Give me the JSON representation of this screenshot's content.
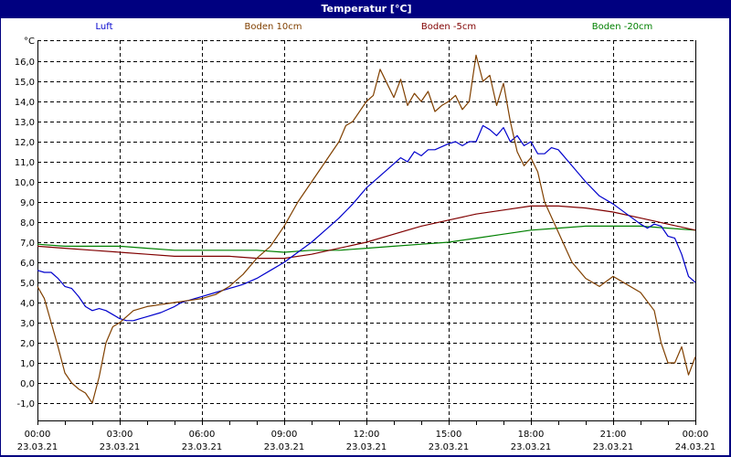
{
  "window": {
    "title": "Temperatur [°C]",
    "title_bg": "#000080"
  },
  "chart_data": {
    "type": "line",
    "title": "Temperatur [°C]",
    "ylabel": "°C",
    "xlabel": "",
    "ylim": [
      -1.9,
      17.0
    ],
    "xlim_hours": [
      0,
      24
    ],
    "grid": true,
    "legend_position": "top",
    "y_ticks": [
      "16,0",
      "15,0",
      "14,0",
      "13,0",
      "12,0",
      "11,0",
      "10,0",
      "9,0",
      "8,0",
      "7,0",
      "6,0",
      "5,0",
      "4,0",
      "3,0",
      "2,0",
      "1,0",
      "0,0",
      "-1,0"
    ],
    "y_tick_values": [
      16,
      15,
      14,
      13,
      12,
      11,
      10,
      9,
      8,
      7,
      6,
      5,
      4,
      3,
      2,
      1,
      0,
      -1
    ],
    "x_ticks": [
      {
        "h": 0,
        "time": "00:00",
        "date": "23.03.21"
      },
      {
        "h": 3,
        "time": "03:00",
        "date": "23.03.21"
      },
      {
        "h": 6,
        "time": "06:00",
        "date": "23.03.21"
      },
      {
        "h": 9,
        "time": "09:00",
        "date": "23.03.21"
      },
      {
        "h": 12,
        "time": "12:00",
        "date": "23.03.21"
      },
      {
        "h": 15,
        "time": "15:00",
        "date": "23.03.21"
      },
      {
        "h": 18,
        "time": "18:00",
        "date": "23.03.21"
      },
      {
        "h": 21,
        "time": "21:00",
        "date": "23.03.21"
      },
      {
        "h": 24,
        "time": "00:00",
        "date": "24.03.21"
      }
    ],
    "series": [
      {
        "name": "Luft",
        "color": "#0000cc",
        "x": [
          0,
          0.25,
          0.5,
          0.75,
          1.0,
          1.25,
          1.5,
          1.75,
          2.0,
          2.25,
          2.5,
          2.75,
          3.0,
          3.25,
          3.5,
          3.75,
          4.0,
          4.5,
          5.0,
          5.25,
          5.5,
          5.75,
          6.0,
          6.5,
          7.0,
          7.5,
          8.0,
          8.5,
          9.0,
          9.5,
          10.0,
          10.5,
          11.0,
          11.5,
          12.0,
          12.5,
          13.0,
          13.25,
          13.5,
          13.75,
          14.0,
          14.25,
          14.5,
          15.0,
          15.25,
          15.5,
          15.75,
          16.0,
          16.25,
          16.5,
          16.75,
          17.0,
          17.25,
          17.5,
          17.75,
          18.0,
          18.25,
          18.5,
          18.75,
          19.0,
          19.5,
          20.0,
          20.5,
          21.0,
          21.5,
          22.0,
          22.25,
          22.5,
          22.75,
          23.0,
          23.25,
          23.5,
          23.75,
          24.0
        ],
        "values": [
          5.6,
          5.5,
          5.5,
          5.2,
          4.8,
          4.7,
          4.3,
          3.8,
          3.6,
          3.7,
          3.6,
          3.4,
          3.2,
          3.1,
          3.1,
          3.2,
          3.3,
          3.5,
          3.8,
          4.0,
          4.1,
          4.2,
          4.3,
          4.5,
          4.7,
          4.9,
          5.2,
          5.6,
          6.0,
          6.5,
          7.0,
          7.6,
          8.2,
          8.9,
          9.7,
          10.3,
          10.9,
          11.2,
          11.0,
          11.5,
          11.3,
          11.6,
          11.6,
          11.9,
          12.0,
          11.8,
          12.0,
          12.0,
          12.8,
          12.6,
          12.3,
          12.7,
          12.0,
          12.3,
          11.8,
          12.0,
          11.4,
          11.4,
          11.7,
          11.6,
          10.8,
          10.0,
          9.3,
          8.9,
          8.4,
          7.9,
          7.7,
          7.9,
          7.8,
          7.3,
          7.2,
          6.4,
          5.3,
          5.0
        ]
      },
      {
        "name": "Boden 10cm",
        "color": "#804000",
        "x": [
          0,
          0.25,
          0.5,
          0.75,
          1.0,
          1.25,
          1.5,
          1.75,
          2.0,
          2.25,
          2.5,
          2.75,
          3.0,
          3.25,
          3.5,
          4.0,
          4.5,
          5.0,
          5.5,
          6.0,
          6.5,
          7.0,
          7.5,
          8.0,
          8.5,
          9.0,
          9.5,
          10.0,
          10.5,
          11.0,
          11.25,
          11.5,
          12.0,
          12.25,
          12.5,
          12.75,
          13.0,
          13.25,
          13.5,
          13.75,
          14.0,
          14.25,
          14.5,
          14.75,
          15.0,
          15.25,
          15.5,
          15.75,
          16.0,
          16.25,
          16.5,
          16.75,
          17.0,
          17.25,
          17.5,
          17.75,
          18.0,
          18.25,
          18.5,
          19.0,
          19.5,
          20.0,
          20.5,
          21.0,
          21.5,
          22.0,
          22.5,
          22.75,
          23.0,
          23.25,
          23.5,
          23.75,
          24.0
        ],
        "values": [
          4.8,
          4.2,
          3.0,
          1.8,
          0.5,
          0.0,
          -0.3,
          -0.5,
          -1.0,
          0.3,
          2.0,
          2.8,
          3.0,
          3.3,
          3.6,
          3.8,
          3.9,
          4.0,
          4.1,
          4.2,
          4.4,
          4.8,
          5.4,
          6.2,
          6.8,
          7.8,
          9.0,
          10.0,
          11.0,
          12.0,
          12.8,
          13.0,
          14.0,
          14.3,
          15.6,
          14.9,
          14.2,
          15.1,
          13.8,
          14.4,
          14.0,
          14.5,
          13.5,
          13.8,
          14.0,
          14.3,
          13.6,
          14.0,
          16.3,
          15.0,
          15.3,
          13.8,
          14.9,
          13.0,
          11.5,
          10.8,
          11.2,
          10.5,
          9.0,
          7.5,
          6.0,
          5.2,
          4.8,
          5.3,
          4.9,
          4.5,
          3.6,
          2.0,
          1.0,
          1.0,
          1.8,
          0.4,
          1.3
        ]
      },
      {
        "name": "Boden -5cm",
        "color": "#800000",
        "x": [
          0,
          1.0,
          2.0,
          3.0,
          4.0,
          5.0,
          6.0,
          7.0,
          8.0,
          9.0,
          10.0,
          11.0,
          12.0,
          13.0,
          14.0,
          15.0,
          16.0,
          17.0,
          18.0,
          19.0,
          20.0,
          21.0,
          22.0,
          23.0,
          24.0
        ],
        "values": [
          6.8,
          6.7,
          6.6,
          6.5,
          6.4,
          6.3,
          6.3,
          6.3,
          6.2,
          6.2,
          6.4,
          6.7,
          7.0,
          7.4,
          7.8,
          8.1,
          8.4,
          8.6,
          8.8,
          8.8,
          8.7,
          8.5,
          8.2,
          7.9,
          7.6
        ]
      },
      {
        "name": "Boden -20cm",
        "color": "#008000",
        "x": [
          0,
          1.0,
          2.0,
          3.0,
          4.0,
          5.0,
          6.0,
          7.0,
          8.0,
          9.0,
          10.0,
          11.0,
          12.0,
          13.0,
          14.0,
          15.0,
          16.0,
          17.0,
          18.0,
          19.0,
          20.0,
          21.0,
          22.0,
          23.0,
          24.0
        ],
        "values": [
          6.9,
          6.8,
          6.8,
          6.8,
          6.7,
          6.6,
          6.6,
          6.6,
          6.6,
          6.5,
          6.6,
          6.6,
          6.7,
          6.8,
          6.9,
          7.0,
          7.2,
          7.4,
          7.6,
          7.7,
          7.8,
          7.8,
          7.8,
          7.7,
          7.6
        ]
      }
    ]
  }
}
